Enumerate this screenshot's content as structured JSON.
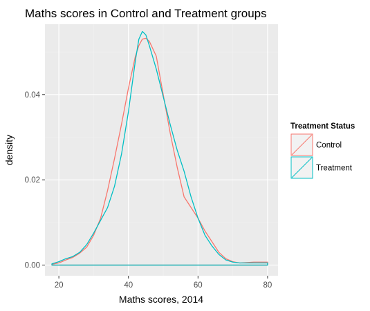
{
  "chart_data": {
    "type": "area",
    "title": "Maths scores in Control and Treatment groups",
    "xlabel": "Maths scores, 2014",
    "ylabel": "density",
    "xlim": [
      16,
      83
    ],
    "ylim": [
      -0.0025,
      0.0565
    ],
    "x_ticks": [
      {
        "value": 20,
        "label": "20"
      },
      {
        "value": 40,
        "label": "40"
      },
      {
        "value": 60,
        "label": "60"
      },
      {
        "value": 80,
        "label": "80"
      }
    ],
    "y_ticks": [
      {
        "value": 0.0,
        "label": "0.00"
      },
      {
        "value": 0.02,
        "label": "0.02"
      },
      {
        "value": 0.04,
        "label": "0.04"
      }
    ],
    "grid": true,
    "legend": {
      "title": "Treatment Status",
      "placement": "right"
    },
    "series": [
      {
        "name": "Control",
        "color": "#F8766D",
        "x": [
          18,
          20,
          22,
          24,
          26,
          28,
          30,
          32,
          34,
          36,
          38,
          40,
          42,
          43,
          44,
          45,
          46,
          48,
          50,
          52,
          54,
          56,
          58,
          60,
          62,
          64,
          66,
          68,
          70,
          72,
          74,
          76,
          78,
          80
        ],
        "y": [
          0.0002,
          0.0005,
          0.0012,
          0.0018,
          0.0028,
          0.0042,
          0.007,
          0.011,
          0.0175,
          0.025,
          0.033,
          0.0415,
          0.049,
          0.0515,
          0.053,
          0.0532,
          0.0525,
          0.049,
          0.04,
          0.031,
          0.023,
          0.016,
          0.0135,
          0.011,
          0.008,
          0.0055,
          0.003,
          0.0015,
          0.0008,
          0.0005,
          0.0006,
          0.0007,
          0.0007,
          0.0007
        ]
      },
      {
        "name": "Treatment",
        "color": "#00BFC4",
        "x": [
          18,
          20,
          22,
          24,
          26,
          28,
          30,
          32,
          34,
          36,
          38,
          40,
          42,
          43,
          44,
          45,
          46,
          48,
          50,
          52,
          54,
          56,
          58,
          60,
          62,
          64,
          66,
          68,
          70,
          72,
          74,
          76,
          78,
          80
        ],
        "y": [
          0.0003,
          0.0008,
          0.0015,
          0.002,
          0.003,
          0.0048,
          0.0075,
          0.0105,
          0.0135,
          0.0185,
          0.026,
          0.036,
          0.048,
          0.053,
          0.0548,
          0.054,
          0.0515,
          0.046,
          0.0395,
          0.033,
          0.027,
          0.022,
          0.016,
          0.011,
          0.007,
          0.0045,
          0.0025,
          0.0012,
          0.0007,
          0.0005,
          0.0005,
          0.0005,
          0.0005,
          0.0005
        ]
      }
    ]
  }
}
